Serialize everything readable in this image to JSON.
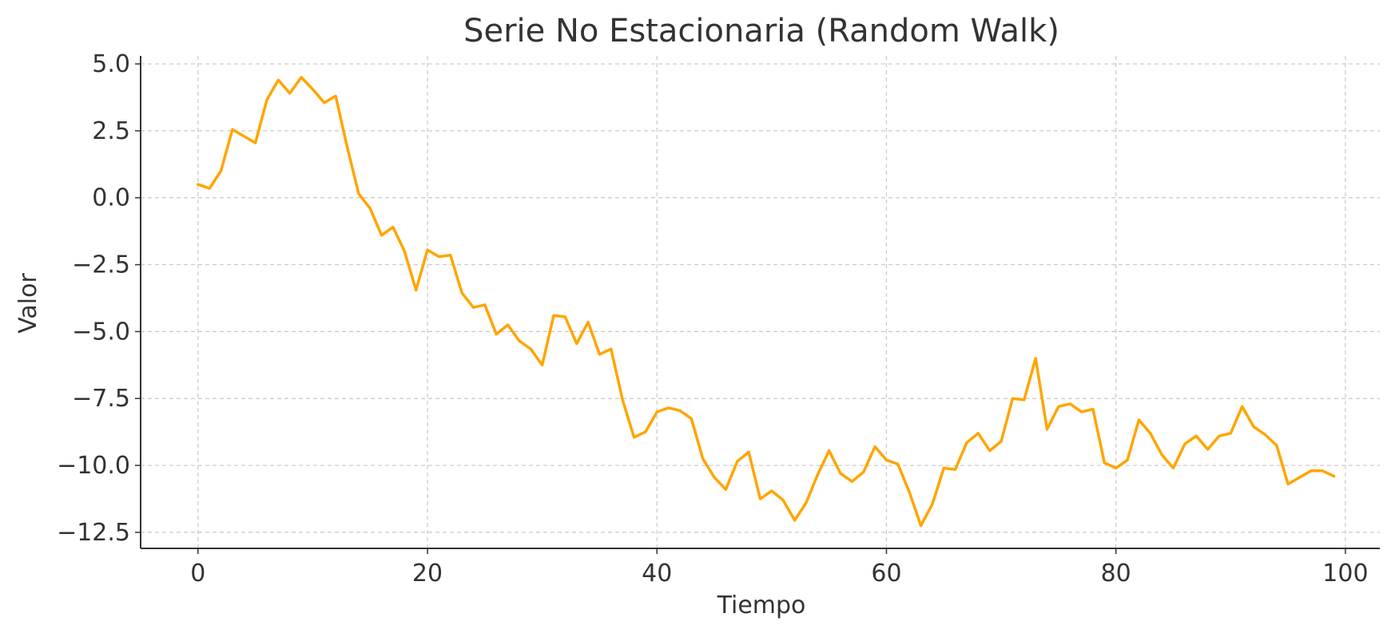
{
  "chart_data": {
    "type": "line",
    "title": "Serie No Estacionaria (Random Walk)",
    "xlabel": "Tiempo",
    "ylabel": "Valor",
    "xlim": [
      -5,
      103
    ],
    "ylim": [
      -13.1,
      5.3
    ],
    "xticks": [
      0,
      20,
      40,
      60,
      80,
      100
    ],
    "yticks": [
      5.0,
      2.5,
      0.0,
      -2.5,
      -5.0,
      -7.5,
      -10.0,
      -12.5
    ],
    "grid": true,
    "color": "#FFA500",
    "series": [
      {
        "name": "Random Walk",
        "x": [
          0,
          1,
          2,
          3,
          4,
          5,
          6,
          7,
          8,
          9,
          10,
          11,
          12,
          13,
          14,
          15,
          16,
          17,
          18,
          19,
          20,
          21,
          22,
          23,
          24,
          25,
          26,
          27,
          28,
          29,
          30,
          31,
          32,
          33,
          34,
          35,
          36,
          37,
          38,
          39,
          40,
          41,
          42,
          43,
          44,
          45,
          46,
          47,
          48,
          49,
          50,
          51,
          52,
          53,
          54,
          55,
          56,
          57,
          58,
          59,
          60,
          61,
          62,
          63,
          64,
          65,
          66,
          67,
          68,
          69,
          70,
          71,
          72,
          73,
          74,
          75,
          76,
          77,
          78,
          79,
          80,
          81,
          82,
          83,
          84,
          85,
          86,
          87,
          88,
          89,
          90,
          91,
          92,
          93,
          94,
          95,
          96,
          97,
          98,
          99
        ],
        "values": [
          0.5,
          0.35,
          1.0,
          2.55,
          2.3,
          2.05,
          3.65,
          4.4,
          3.9,
          4.5,
          4.05,
          3.55,
          3.8,
          1.9,
          0.15,
          -0.4,
          -1.4,
          -1.1,
          -2.0,
          -3.45,
          -1.95,
          -2.2,
          -2.15,
          -3.55,
          -4.1,
          -4.0,
          -5.1,
          -4.75,
          -5.35,
          -5.65,
          -6.25,
          -4.4,
          -4.45,
          -5.45,
          -4.65,
          -5.85,
          -5.65,
          -7.55,
          -8.95,
          -8.75,
          -8.0,
          -7.85,
          -7.95,
          -8.25,
          -9.75,
          -10.45,
          -10.9,
          -9.85,
          -9.5,
          -11.25,
          -10.95,
          -11.3,
          -12.05,
          -11.4,
          -10.35,
          -9.45,
          -10.3,
          -10.6,
          -10.25,
          -9.3,
          -9.8,
          -9.95,
          -11.0,
          -12.25,
          -11.45,
          -10.1,
          -10.15,
          -9.15,
          -8.8,
          -9.45,
          -9.1,
          -7.5,
          -7.55,
          -6.0,
          -8.65,
          -7.8,
          -7.7,
          -8.0,
          -7.9,
          -9.9,
          -10.1,
          -9.8,
          -8.3,
          -8.8,
          -9.6,
          -10.1,
          -9.2,
          -8.9,
          -9.4,
          -8.9,
          -8.8,
          -7.8,
          -8.55,
          -8.85,
          -9.25,
          -10.7,
          -10.45,
          -10.2,
          -10.2,
          -10.4
        ]
      }
    ]
  }
}
